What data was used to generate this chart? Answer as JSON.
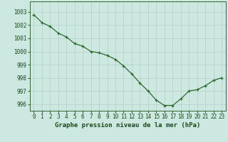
{
  "x": [
    0,
    1,
    2,
    3,
    4,
    5,
    6,
    7,
    8,
    9,
    10,
    11,
    12,
    13,
    14,
    15,
    16,
    17,
    18,
    19,
    20,
    21,
    22,
    23
  ],
  "y": [
    1002.8,
    1002.2,
    1001.9,
    1001.4,
    1001.1,
    1000.6,
    1000.4,
    1000.0,
    999.9,
    999.7,
    999.4,
    998.9,
    998.3,
    997.6,
    997.0,
    996.3,
    995.9,
    995.9,
    996.4,
    997.0,
    997.1,
    997.4,
    997.8,
    998.0
  ],
  "line_color": "#2d6a2d",
  "marker": "+",
  "marker_size": 3.5,
  "background_color": "#cce8e0",
  "grid_color": "#b0d0c8",
  "xlabel": "Graphe pression niveau de la mer (hPa)",
  "xlabel_fontsize": 6.5,
  "tick_fontsize": 5.5,
  "ylim": [
    995.5,
    1003.8
  ],
  "yticks": [
    996,
    997,
    998,
    999,
    1000,
    1001,
    1002,
    1003
  ],
  "xticks": [
    0,
    1,
    2,
    3,
    4,
    5,
    6,
    7,
    8,
    9,
    10,
    11,
    12,
    13,
    14,
    15,
    16,
    17,
    18,
    19,
    20,
    21,
    22,
    23
  ],
  "line_width": 0.9,
  "text_color": "#1a4a1a",
  "spine_color": "#336633"
}
